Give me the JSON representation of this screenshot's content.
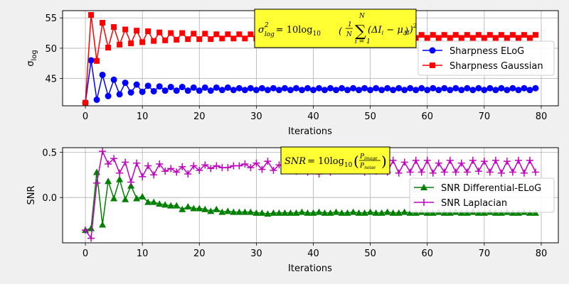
{
  "chart_data": [
    {
      "type": "line",
      "title": "",
      "xlabel": "Iterations",
      "ylabel": "σ",
      "ylabel_sub": "log",
      "xlim": [
        -4,
        83
      ],
      "ylim": [
        40.5,
        56.2
      ],
      "xticks": [
        0,
        10,
        20,
        30,
        40,
        50,
        60,
        70,
        80
      ],
      "yticks": [
        45,
        50,
        55
      ],
      "grid": true,
      "legend_position": "center-right",
      "series": [
        {
          "name": "Sharpness ELoG",
          "color": "#0000ff",
          "marker": "circle",
          "x": [
            0,
            1,
            2,
            3,
            4,
            5,
            6,
            7,
            8,
            9,
            10,
            11,
            12,
            13,
            14,
            15,
            16,
            17,
            18,
            19,
            20,
            21,
            22,
            23,
            24,
            25,
            26,
            27,
            28,
            29,
            30,
            31,
            32,
            33,
            34,
            35,
            36,
            37,
            38,
            39,
            40,
            41,
            42,
            43,
            44,
            45,
            46,
            47,
            48,
            49,
            50,
            51,
            52,
            53,
            54,
            55,
            56,
            57,
            58,
            59,
            60,
            61,
            62,
            63,
            64,
            65,
            66,
            67,
            68,
            69,
            70,
            71,
            72,
            73,
            74,
            75,
            76,
            77,
            78,
            79
          ],
          "values": [
            41.0,
            48.0,
            41.5,
            45.6,
            42.1,
            44.8,
            42.4,
            44.3,
            42.7,
            44.0,
            42.8,
            43.8,
            42.9,
            43.7,
            43.0,
            43.6,
            43.0,
            43.6,
            43.0,
            43.5,
            43.0,
            43.5,
            43.0,
            43.5,
            43.1,
            43.5,
            43.1,
            43.4,
            43.1,
            43.4,
            43.1,
            43.4,
            43.1,
            43.4,
            43.1,
            43.4,
            43.1,
            43.4,
            43.1,
            43.4,
            43.1,
            43.4,
            43.1,
            43.4,
            43.1,
            43.4,
            43.1,
            43.4,
            43.1,
            43.4,
            43.1,
            43.4,
            43.1,
            43.4,
            43.1,
            43.4,
            43.1,
            43.4,
            43.1,
            43.4,
            43.1,
            43.4,
            43.1,
            43.4,
            43.1,
            43.4,
            43.1,
            43.4,
            43.1,
            43.4,
            43.1,
            43.4,
            43.1,
            43.4,
            43.1,
            43.4,
            43.1,
            43.4,
            43.1,
            43.4
          ]
        },
        {
          "name": "Sharpness Gaussian",
          "color": "#ff0000",
          "marker": "square",
          "x": [
            0,
            1,
            2,
            3,
            4,
            5,
            6,
            7,
            8,
            9,
            10,
            11,
            12,
            13,
            14,
            15,
            16,
            17,
            18,
            19,
            20,
            21,
            22,
            23,
            24,
            25,
            26,
            27,
            28,
            29,
            30,
            31,
            32,
            33,
            34,
            35,
            36,
            37,
            38,
            39,
            40,
            41,
            42,
            43,
            44,
            45,
            46,
            47,
            48,
            49,
            50,
            51,
            52,
            53,
            54,
            55,
            56,
            57,
            58,
            59,
            60,
            61,
            62,
            63,
            64,
            65,
            66,
            67,
            68,
            69,
            70,
            71,
            72,
            73,
            74,
            75,
            76,
            77,
            78,
            79
          ],
          "values": [
            41.0,
            55.5,
            47.9,
            54.2,
            50.1,
            53.5,
            50.6,
            53.1,
            50.8,
            52.9,
            51.0,
            52.8,
            51.2,
            52.6,
            51.3,
            52.5,
            51.4,
            52.5,
            51.5,
            52.4,
            51.5,
            52.4,
            51.5,
            52.3,
            51.6,
            52.3,
            51.6,
            52.3,
            51.6,
            52.3,
            51.6,
            52.2,
            51.6,
            52.2,
            51.6,
            52.2,
            51.7,
            52.2,
            51.7,
            52.2,
            51.7,
            52.2,
            51.7,
            52.2,
            51.7,
            52.2,
            51.7,
            52.2,
            51.7,
            52.2,
            51.7,
            52.2,
            51.7,
            52.2,
            51.7,
            52.2,
            51.7,
            52.2,
            51.7,
            52.2,
            51.7,
            52.2,
            51.7,
            52.2,
            51.7,
            52.2,
            51.7,
            52.2,
            51.7,
            52.2,
            51.7,
            52.2,
            51.7,
            52.2,
            51.7,
            52.2,
            51.7,
            52.2,
            51.7,
            52.2
          ]
        }
      ],
      "annotation": {
        "lhs": "σ",
        "lhs_sub": "log",
        "lhs_sup": "2",
        "eq": "= 10log",
        "log_sub": "10",
        "frac_num": "1",
        "frac_den": "N",
        "sum_top": "N",
        "sum_bottom": "i = 1",
        "body": "(ΔI",
        "body_sub": "i",
        "body_mid": " − μ",
        "body_sub2": "ΔI",
        "body_end": ")",
        "body_sup": "2",
        "color": "#ffff33"
      }
    },
    {
      "type": "line",
      "title": "",
      "xlabel": "Iterations",
      "ylabel": "SNR",
      "xlim": [
        -4,
        83
      ],
      "ylim": [
        -0.5,
        0.55
      ],
      "xticks": [
        0,
        10,
        20,
        30,
        40,
        50,
        60,
        70,
        80
      ],
      "yticks": [
        0.0,
        0.5
      ],
      "ytick_labels": [
        "0.0",
        "0.5"
      ],
      "grid": true,
      "legend_position": "center-right",
      "series": [
        {
          "name": "SNR Differential-ELoG",
          "color": "#008000",
          "marker": "triangle",
          "x": [
            0,
            1,
            2,
            3,
            4,
            5,
            6,
            7,
            8,
            9,
            10,
            11,
            12,
            13,
            14,
            15,
            16,
            17,
            18,
            19,
            20,
            21,
            22,
            23,
            24,
            25,
            26,
            27,
            28,
            29,
            30,
            31,
            32,
            33,
            34,
            35,
            36,
            37,
            38,
            39,
            40,
            41,
            42,
            43,
            44,
            45,
            46,
            47,
            48,
            49,
            50,
            51,
            52,
            53,
            54,
            55,
            56,
            57,
            58,
            59,
            60,
            61,
            62,
            63,
            64,
            65,
            66,
            67,
            68,
            69,
            70,
            71,
            72,
            73,
            74,
            75,
            76,
            77,
            78,
            79
          ],
          "values": [
            -0.36,
            -0.34,
            0.28,
            -0.3,
            0.18,
            -0.01,
            0.2,
            -0.02,
            0.13,
            -0.01,
            0.01,
            -0.05,
            -0.05,
            -0.07,
            -0.08,
            -0.09,
            -0.09,
            -0.13,
            -0.1,
            -0.12,
            -0.12,
            -0.13,
            -0.15,
            -0.13,
            -0.16,
            -0.15,
            -0.16,
            -0.16,
            -0.16,
            -0.16,
            -0.17,
            -0.17,
            -0.18,
            -0.17,
            -0.17,
            -0.17,
            -0.17,
            -0.17,
            -0.16,
            -0.17,
            -0.17,
            -0.16,
            -0.17,
            -0.17,
            -0.16,
            -0.17,
            -0.17,
            -0.16,
            -0.17,
            -0.17,
            -0.16,
            -0.17,
            -0.17,
            -0.16,
            -0.17,
            -0.17,
            -0.16,
            -0.17,
            -0.17,
            -0.16,
            -0.17,
            -0.17,
            -0.16,
            -0.17,
            -0.17,
            -0.16,
            -0.17,
            -0.17,
            -0.16,
            -0.17,
            -0.17,
            -0.16,
            -0.17,
            -0.17,
            -0.16,
            -0.17,
            -0.17,
            -0.16,
            -0.17,
            -0.17
          ]
        },
        {
          "name": "SNR Laplacian",
          "color": "#bf00bf",
          "marker": "plus",
          "x": [
            0,
            1,
            2,
            3,
            4,
            5,
            6,
            7,
            8,
            9,
            10,
            11,
            12,
            13,
            14,
            15,
            16,
            17,
            18,
            19,
            20,
            21,
            22,
            23,
            24,
            25,
            26,
            27,
            28,
            29,
            30,
            31,
            32,
            33,
            34,
            35,
            36,
            37,
            38,
            39,
            40,
            41,
            42,
            43,
            44,
            45,
            46,
            47,
            48,
            49,
            50,
            51,
            52,
            53,
            54,
            55,
            56,
            57,
            58,
            59,
            60,
            61,
            62,
            63,
            64,
            65,
            66,
            67,
            68,
            69,
            70,
            71,
            72,
            73,
            74,
            75,
            76,
            77,
            78,
            79
          ],
          "values": [
            -0.36,
            -0.45,
            0.16,
            0.51,
            0.37,
            0.43,
            0.27,
            0.39,
            0.17,
            0.38,
            0.23,
            0.35,
            0.25,
            0.37,
            0.29,
            0.32,
            0.28,
            0.34,
            0.26,
            0.35,
            0.3,
            0.36,
            0.32,
            0.35,
            0.33,
            0.33,
            0.35,
            0.35,
            0.37,
            0.33,
            0.38,
            0.31,
            0.4,
            0.3,
            0.36,
            0.33,
            0.39,
            0.29,
            0.41,
            0.28,
            0.41,
            0.26,
            0.38,
            0.28,
            0.4,
            0.31,
            0.38,
            0.34,
            0.39,
            0.28,
            0.41,
            0.29,
            0.38,
            0.28,
            0.41,
            0.27,
            0.39,
            0.28,
            0.41,
            0.28,
            0.41,
            0.27,
            0.38,
            0.28,
            0.41,
            0.28,
            0.38,
            0.28,
            0.41,
            0.29,
            0.4,
            0.28,
            0.41,
            0.27,
            0.4,
            0.28,
            0.41,
            0.27,
            0.41,
            0.28
          ]
        }
      ],
      "annotation": {
        "lhs": "SNR",
        "eq": "= 10log",
        "log_sub": "10",
        "frac_num": "P",
        "frac_num_sub": "image",
        "frac_den": "P",
        "frac_den_sub": "noise",
        "color": "#ffff33"
      }
    }
  ]
}
